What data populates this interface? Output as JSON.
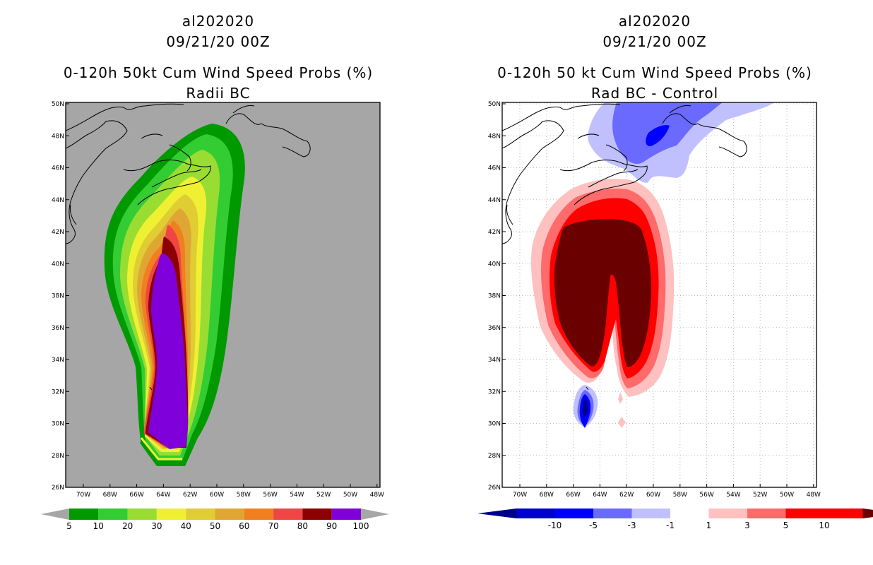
{
  "left": {
    "storm_id": "al202020",
    "date": "09/21/20 00Z",
    "title": "0-120h 50kt Cum Wind Speed Probs (%)",
    "subtitle": "Radii BC",
    "background": "#a6a6a6",
    "lat_labels": [
      "50N",
      "48N",
      "46N",
      "44N",
      "42N",
      "40N",
      "38N",
      "36N",
      "34N",
      "32N",
      "30N",
      "28N",
      "26N"
    ],
    "lon_labels": [
      "70W",
      "68W",
      "66W",
      "64W",
      "62W",
      "60W",
      "58W",
      "56W",
      "54W",
      "52W",
      "50W",
      "48W"
    ],
    "legend": {
      "labels": [
        "5",
        "10",
        "20",
        "30",
        "40",
        "50",
        "60",
        "70",
        "80",
        "90",
        "100"
      ],
      "colors": [
        "#009900",
        "#33cc33",
        "#99dd33",
        "#f0f033",
        "#e0cc33",
        "#e0a633",
        "#f07f20",
        "#f04545",
        "#8c0000",
        "#8000d9"
      ],
      "arrow_color": "#a6a6a6"
    }
  },
  "right": {
    "storm_id": "al202020",
    "date": "09/21/20 00Z",
    "title": "0-120h 50 kt Cum Wind Speed Probs (%)",
    "subtitle": "Rad BC - Control",
    "background": "#ffffff",
    "lat_labels": [
      "50N",
      "48N",
      "46N",
      "44N",
      "42N",
      "40N",
      "38N",
      "36N",
      "34N",
      "32N",
      "30N",
      "28N",
      "26N"
    ],
    "lon_labels": [
      "70W",
      "68W",
      "66W",
      "64W",
      "62W",
      "60W",
      "58W",
      "56W",
      "54W",
      "52W",
      "50W",
      "48W"
    ],
    "legend": {
      "labels": [
        "-10",
        "-5",
        "-3",
        "-1",
        "1",
        "3",
        "5",
        "10"
      ],
      "colors": [
        "#0000d0",
        "#0000ff",
        "#6a6aff",
        "#c0c0ff",
        "#ffffff",
        "#ffc0c0",
        "#ff6a6a",
        "#ff0000",
        "#ff0000"
      ],
      "low_arrow_color": "#00008b",
      "high_arrow_color": "#6b0000"
    }
  }
}
